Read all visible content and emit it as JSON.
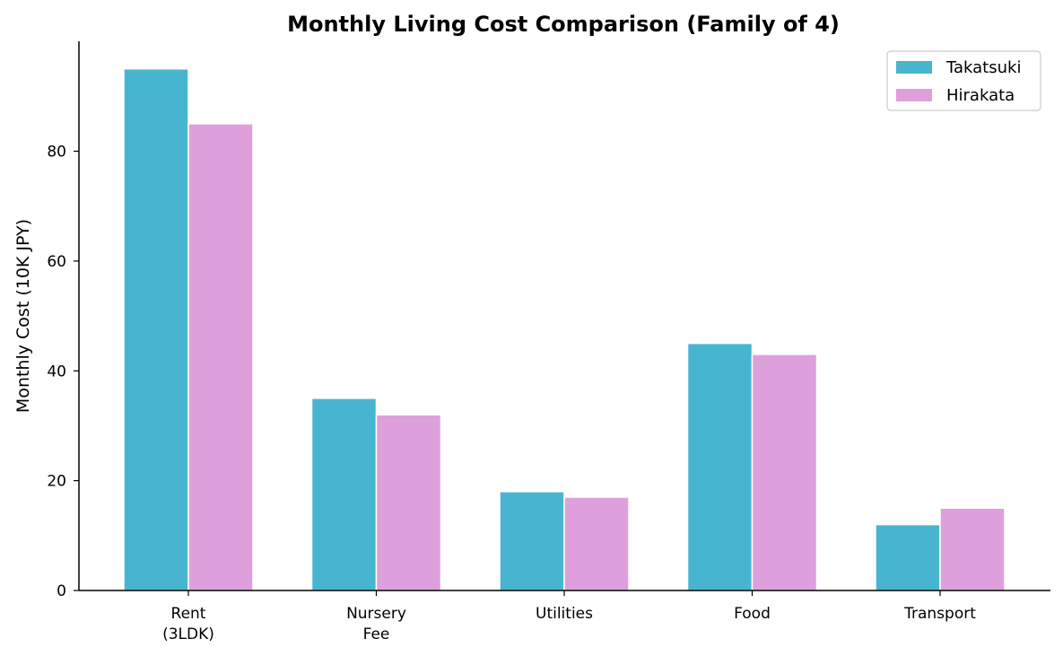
{
  "chart_data": {
    "type": "bar",
    "title": "Monthly Living Cost Comparison (Family of 4)",
    "xlabel": "",
    "ylabel": "Monthly Cost (10K JPY)",
    "categories": [
      [
        "Rent",
        "(3LDK)"
      ],
      [
        "Nursery",
        "Fee"
      ],
      [
        "Utilities"
      ],
      [
        "Food"
      ],
      [
        "Transport"
      ]
    ],
    "series": [
      {
        "name": "Takatsuki",
        "color": "#48b5d0",
        "values": [
          95,
          35,
          18,
          45,
          12
        ]
      },
      {
        "name": "Hirakata",
        "color": "#dda0dd",
        "values": [
          85,
          32,
          17,
          43,
          15
        ]
      }
    ],
    "ylim": [
      0,
      100
    ],
    "yticks": [
      0,
      20,
      40,
      60,
      80
    ],
    "grid": false,
    "legend": "top-right"
  }
}
